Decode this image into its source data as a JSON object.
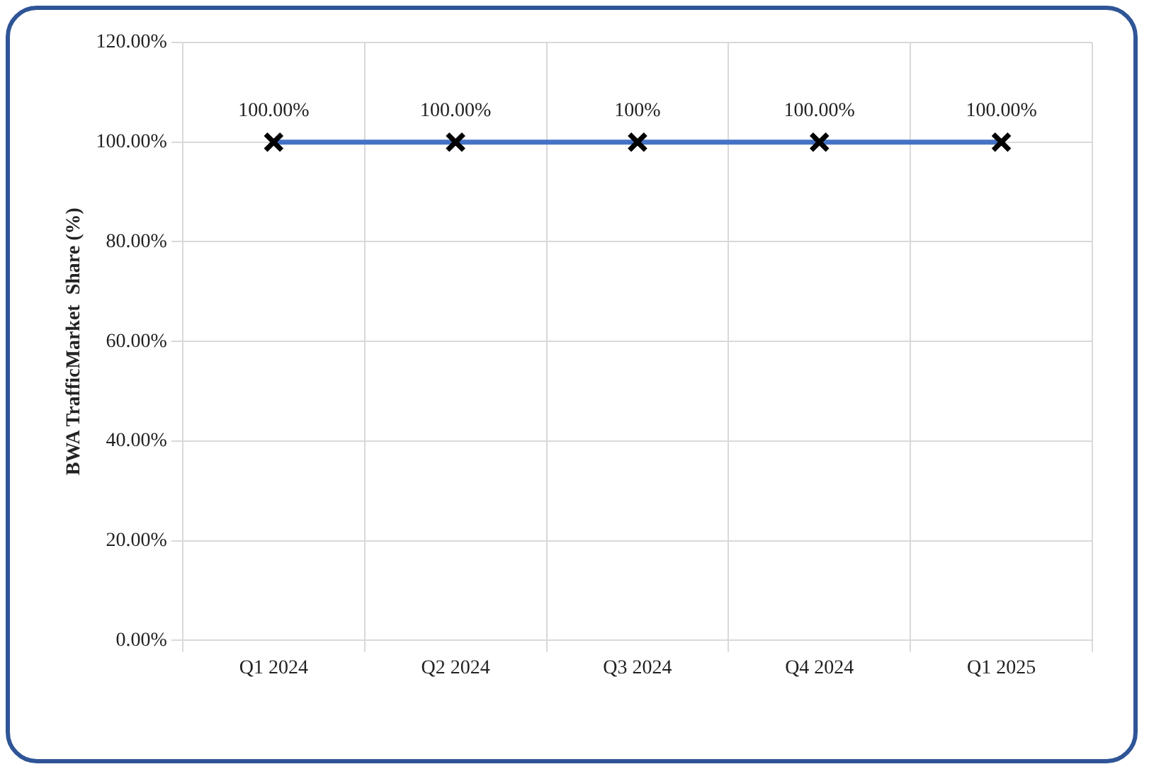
{
  "chart_data": {
    "type": "line",
    "ylabel": "BWA TrafficMarket  Share (%)",
    "categories": [
      "Q1 2024",
      "Q2 2024",
      "Q3 2024",
      "Q4 2024",
      "Q1 2025"
    ],
    "series": [
      {
        "color": "#4472c4",
        "values": [
          100,
          100,
          100,
          100,
          100
        ],
        "value_labels": [
          "100.00%",
          "100.00%",
          "100%",
          "100.00%",
          "100.00%"
        ]
      }
    ],
    "ylim": [
      0,
      120
    ],
    "yticks": [
      {
        "value": 0,
        "label": "0.00%"
      },
      {
        "value": 20,
        "label": "20.00%"
      },
      {
        "value": 40,
        "label": "40.00%"
      },
      {
        "value": 60,
        "label": "60.00%"
      },
      {
        "value": 80,
        "label": "80.00%"
      },
      {
        "value": 100,
        "label": "100.00%"
      },
      {
        "value": 120,
        "label": "120.00%"
      }
    ],
    "grid": true,
    "marker": "cross",
    "line_style": "solid",
    "legend": false
  }
}
